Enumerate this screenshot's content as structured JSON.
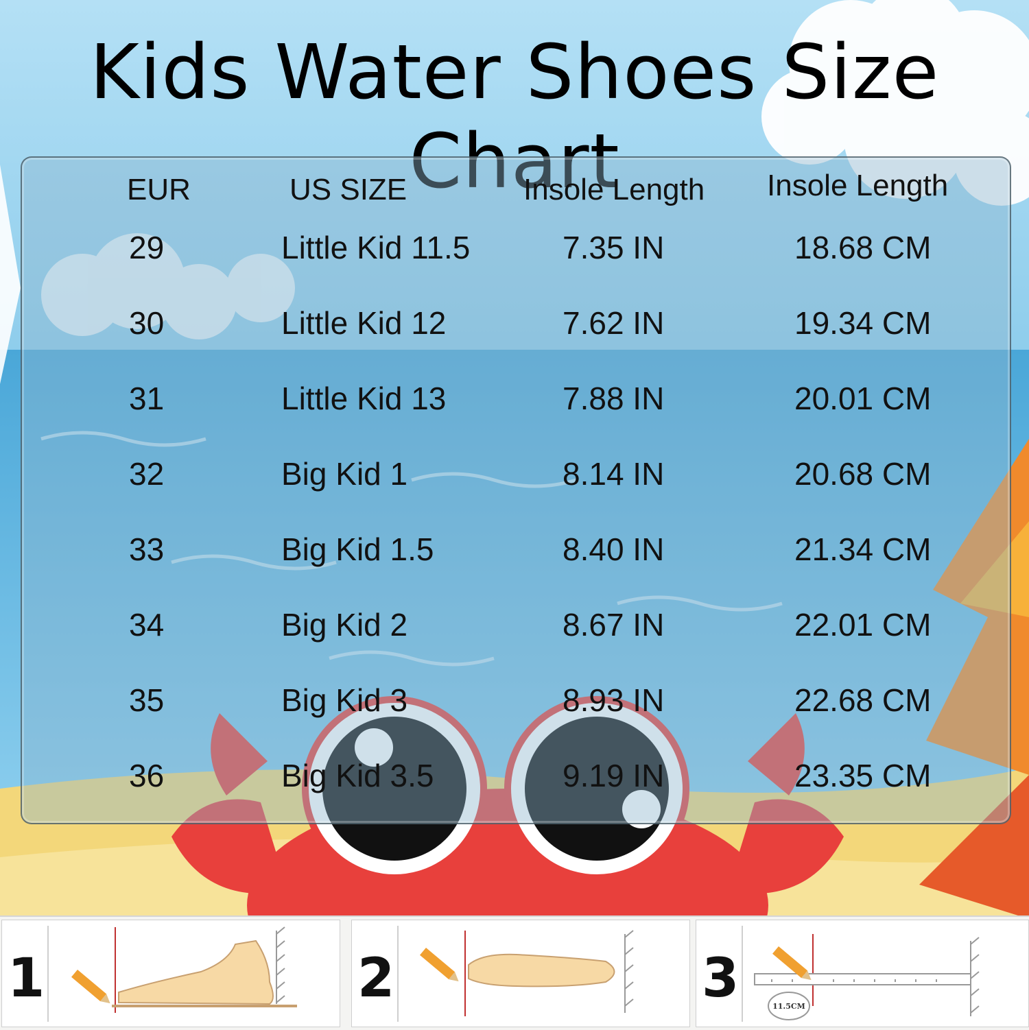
{
  "title": "Kids Water Shoes Size Chart",
  "table": {
    "headers": [
      "EUR",
      "US SIZE",
      "Insole Length",
      "Insole Length"
    ],
    "rows": [
      {
        "eur": "29",
        "us": "Little Kid 11.5",
        "in": "7.35 IN",
        "cm": "18.68 CM"
      },
      {
        "eur": "30",
        "us": "Little Kid 12",
        "in": "7.62 IN",
        "cm": "19.34 CM"
      },
      {
        "eur": "31",
        "us": "Little Kid 13",
        "in": "7.88 IN",
        "cm": "20.01 CM"
      },
      {
        "eur": "32",
        "us": "Big Kid 1",
        "in": "8.14 IN",
        "cm": "20.68 CM"
      },
      {
        "eur": "33",
        "us": "Big Kid 1.5",
        "in": "8.40 IN",
        "cm": "21.34 CM"
      },
      {
        "eur": "34",
        "us": "Big Kid 2",
        "in": "8.67 IN",
        "cm": "22.01 CM"
      },
      {
        "eur": "35",
        "us": "Big Kid 3",
        "in": "8.93 IN",
        "cm": "22.68 CM"
      },
      {
        "eur": "36",
        "us": "Big Kid 3.5",
        "in": "9.19 IN",
        "cm": "23.35 CM"
      }
    ]
  },
  "steps": [
    {
      "number": "1",
      "icon": "foot-side-measure-icon"
    },
    {
      "number": "2",
      "icon": "foot-top-measure-icon"
    },
    {
      "number": "3",
      "icon": "ruler-measure-icon",
      "ruler_label": "11.5CM"
    }
  ],
  "colors": {
    "sky": "#9fd3ef",
    "sea": "#4aa7d8",
    "sand": "#f3d77a",
    "crab": "#e8403c",
    "umbrella": "#f08a2c",
    "text": "#111111"
  }
}
